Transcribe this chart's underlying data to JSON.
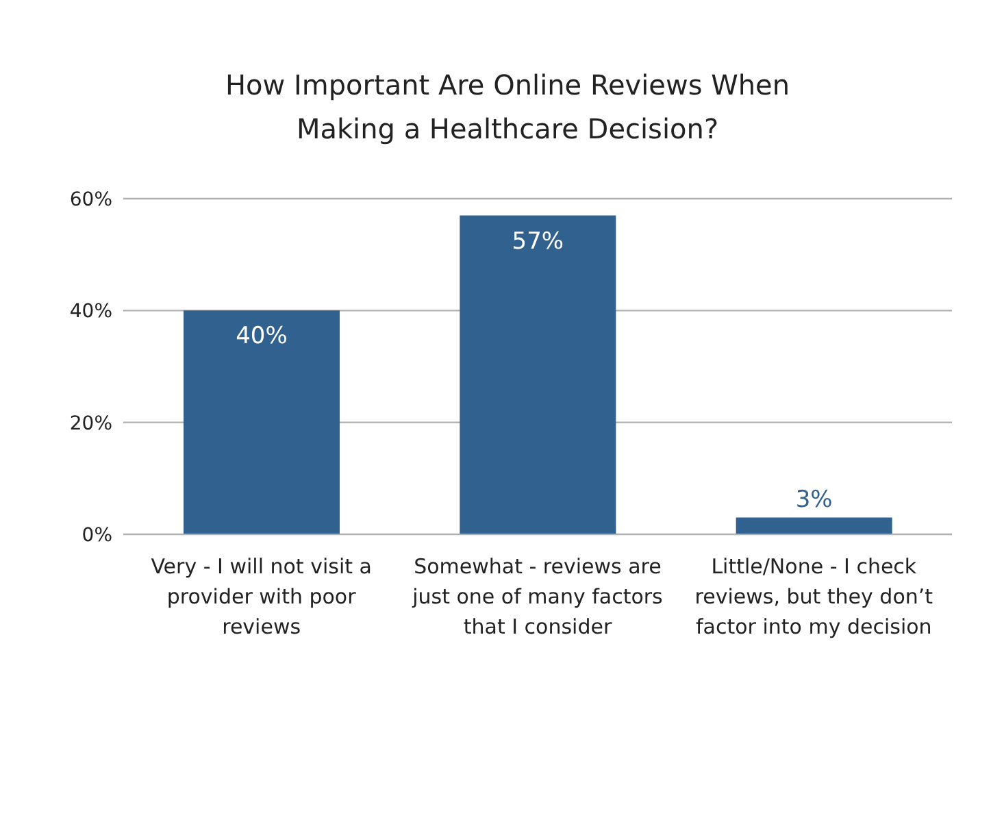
{
  "chart_data": {
    "type": "bar",
    "title": "How Important Are Online Reviews When Making a Healthcare Decision?",
    "categories": [
      "Very - I will not visit a provider with poor reviews",
      "Somewhat - reviews are just one of many factors that I consider",
      "Little/None - I check reviews, but they don’t factor into my decision"
    ],
    "values": [
      40,
      57,
      3
    ],
    "value_labels": [
      "40%",
      "57%",
      "3%"
    ],
    "color": "#30618f",
    "ylim": [
      0,
      60
    ],
    "yticks": [
      {
        "value": 0,
        "label": "0%"
      },
      {
        "value": 20,
        "label": "20%"
      },
      {
        "value": 40,
        "label": "40%"
      },
      {
        "value": 60,
        "label": "60%"
      }
    ],
    "grid": "y"
  }
}
